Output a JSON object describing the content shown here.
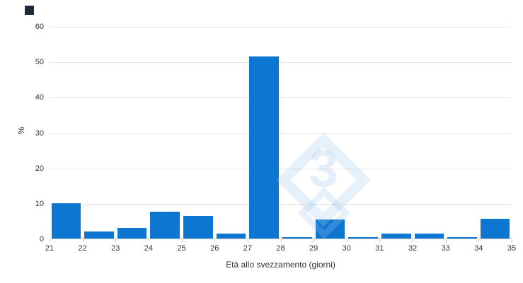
{
  "chart": {
    "y_axis_title": "%",
    "x_axis_title": "Età allo svezzamento (giorni)"
  },
  "watermark": {
    "text": "3"
  },
  "chart_data": {
    "type": "bar",
    "subtype": "histogram",
    "title": "",
    "xlabel": "Età allo svezzamento (giorni)",
    "ylabel": "%",
    "bin_edges": [
      21,
      22,
      23,
      24,
      25,
      26,
      27,
      28,
      29,
      30,
      31,
      32,
      33,
      34,
      35
    ],
    "categories": [
      "21-22",
      "22-23",
      "23-24",
      "24-25",
      "25-26",
      "26-27",
      "27-28",
      "28-29",
      "29-30",
      "30-31",
      "31-32",
      "32-33",
      "33-34",
      "34-35"
    ],
    "values": [
      10,
      2,
      3,
      7.5,
      6.4,
      1.4,
      51.5,
      0.4,
      5.4,
      0.4,
      1.4,
      1.4,
      0.4,
      5.5
    ],
    "ylim": [
      0,
      60
    ],
    "yticks": [
      0,
      10,
      20,
      30,
      40,
      50,
      60
    ],
    "grid": true,
    "legend": false,
    "bar_color": "#0d76d1",
    "gridline_color": "#e6e6e6",
    "axis_line_color": "#cccccc"
  }
}
